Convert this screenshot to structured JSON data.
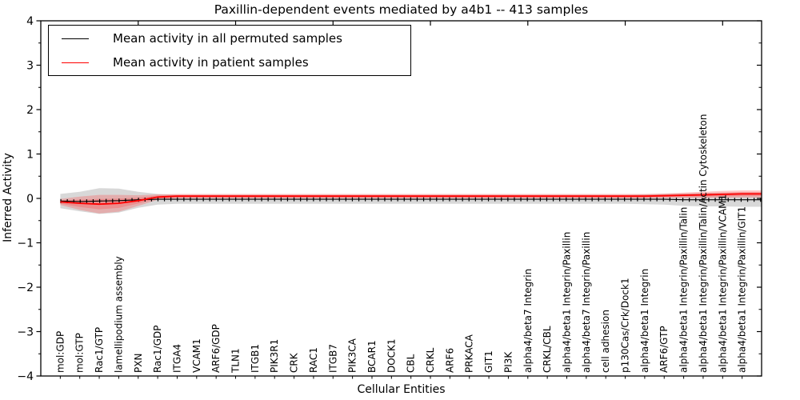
{
  "chart_data": {
    "type": "line",
    "title": "Paxillin-dependent events mediated by a4b1 -- 413 samples",
    "xlabel": "Cellular Entities",
    "ylabel": "Inferred Activity",
    "ylim": [
      -4,
      4
    ],
    "ytick_values": [
      4,
      3,
      2,
      1,
      0,
      -1,
      -2,
      -3,
      -4
    ],
    "ytick_labels": [
      "4",
      "3",
      "2",
      "1",
      "0",
      "−1",
      "−2",
      "−3",
      "−4"
    ],
    "grid": false,
    "legend_position": "upper left",
    "categories": [
      "mol:GDP",
      "mol:GTP",
      "Rac1/GTP",
      "lamellipodium assembly",
      "PXN",
      "Rac1/GDP",
      "ITGA4",
      "VCAM1",
      "ARF6/GDP",
      "TLN1",
      "ITGB1",
      "PIK3R1",
      "CRK",
      "RAC1",
      "ITGB7",
      "PIK3CA",
      "BCAR1",
      "DOCK1",
      "CBL",
      "CRKL",
      "ARF6",
      "PRKACA",
      "GIT1",
      "PI3K",
      "alpha4/beta7 Integrin",
      "CRKL/CBL",
      "alpha4/beta1 Integrin/Paxillin",
      "alpha4/beta7 Integrin/Paxillin",
      "cell adhesion",
      "p130Cas/Crk/Dock1",
      "alpha4/beta1 Integrin",
      "ARF6/GTP",
      "alpha4/beta1 Integrin/Paxillin/Talin",
      "alpha4/beta1 Integrin/Paxillin/Talin/Actin Cytoskeleton",
      "alpha4/beta1 Integrin/Paxillin/VCAM1",
      "alpha4/beta1 Integrin/Paxillin/GIT1"
    ],
    "series": [
      {
        "name": "Mean activity in all permuted samples",
        "color": "#000000",
        "band_color": "rgba(125,125,125,0.30)",
        "marker": "vertical-tick",
        "values": [
          -0.06,
          -0.07,
          -0.06,
          -0.05,
          -0.03,
          -0.02,
          -0.02,
          -0.02,
          -0.02,
          -0.02,
          -0.02,
          -0.02,
          -0.02,
          -0.02,
          -0.02,
          -0.02,
          -0.02,
          -0.02,
          -0.02,
          -0.02,
          -0.02,
          -0.02,
          -0.02,
          -0.02,
          -0.02,
          -0.02,
          -0.02,
          -0.02,
          -0.02,
          -0.02,
          -0.02,
          -0.02,
          -0.03,
          -0.03,
          -0.03,
          -0.03
        ],
        "band_upper": [
          0.1,
          0.15,
          0.23,
          0.22,
          0.15,
          0.1,
          0.08,
          0.08,
          0.08,
          0.08,
          0.08,
          0.08,
          0.08,
          0.08,
          0.08,
          0.08,
          0.08,
          0.08,
          0.08,
          0.08,
          0.08,
          0.08,
          0.08,
          0.08,
          0.08,
          0.08,
          0.08,
          0.08,
          0.08,
          0.08,
          0.09,
          0.1,
          0.11,
          0.12,
          0.12,
          0.13
        ],
        "band_lower": [
          -0.22,
          -0.29,
          -0.35,
          -0.32,
          -0.21,
          -0.14,
          -0.12,
          -0.12,
          -0.12,
          -0.12,
          -0.12,
          -0.12,
          -0.12,
          -0.12,
          -0.12,
          -0.12,
          -0.12,
          -0.12,
          -0.12,
          -0.12,
          -0.12,
          -0.12,
          -0.12,
          -0.12,
          -0.12,
          -0.12,
          -0.12,
          -0.12,
          -0.12,
          -0.12,
          -0.13,
          -0.14,
          -0.17,
          -0.18,
          -0.18,
          -0.19
        ]
      },
      {
        "name": "Mean activity in patient samples",
        "color": "#ff0000",
        "band_color": "rgba(255,60,60,0.28)",
        "marker": "none",
        "values": [
          -0.08,
          -0.11,
          -0.13,
          -0.11,
          -0.05,
          0.03,
          0.05,
          0.05,
          0.05,
          0.05,
          0.05,
          0.05,
          0.05,
          0.05,
          0.05,
          0.05,
          0.05,
          0.05,
          0.05,
          0.05,
          0.05,
          0.05,
          0.05,
          0.05,
          0.05,
          0.05,
          0.05,
          0.05,
          0.05,
          0.05,
          0.05,
          0.06,
          0.07,
          0.08,
          0.09,
          0.1
        ],
        "band_upper": [
          -0.01,
          0.04,
          0.08,
          0.08,
          0.07,
          0.09,
          0.1,
          0.1,
          0.1,
          0.1,
          0.1,
          0.1,
          0.1,
          0.1,
          0.1,
          0.1,
          0.1,
          0.1,
          0.1,
          0.1,
          0.1,
          0.1,
          0.1,
          0.1,
          0.1,
          0.1,
          0.1,
          0.1,
          0.1,
          0.1,
          0.1,
          0.11,
          0.13,
          0.15,
          0.17,
          0.18
        ],
        "band_lower": [
          -0.15,
          -0.26,
          -0.34,
          -0.3,
          -0.17,
          -0.03,
          0.0,
          0.0,
          0.0,
          0.0,
          0.0,
          0.0,
          0.0,
          0.0,
          0.0,
          0.0,
          0.0,
          0.0,
          0.0,
          0.0,
          0.0,
          0.0,
          0.0,
          0.0,
          0.0,
          0.0,
          0.0,
          0.0,
          0.0,
          0.0,
          0.0,
          0.01,
          0.01,
          0.01,
          0.01,
          0.02
        ]
      }
    ]
  }
}
